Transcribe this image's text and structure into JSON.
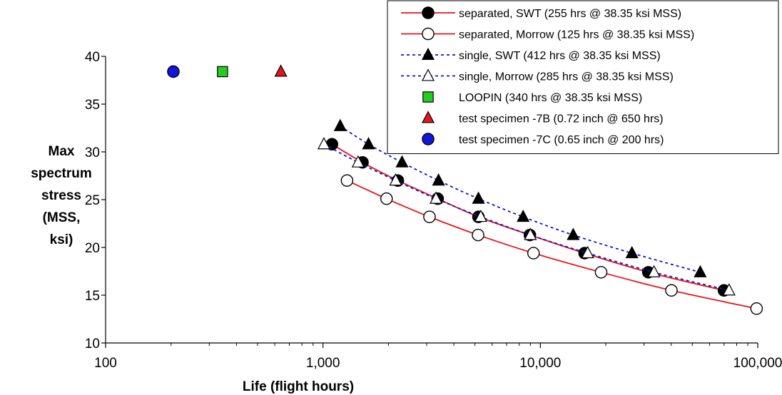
{
  "chart_data": {
    "type": "scatter",
    "xlabel": "Life (flight hours)",
    "ylabel_lines": [
      "Max",
      "spectrum",
      "stress",
      "(MSS,",
      "ksi)"
    ],
    "xscale": "log",
    "xlim": [
      100,
      100000
    ],
    "ylim": [
      10,
      40
    ],
    "xticks": [
      100,
      1000,
      10000,
      100000
    ],
    "xtick_labels": [
      "100",
      "1,000",
      "10,000",
      "100,000"
    ],
    "yticks": [
      10,
      15,
      20,
      25,
      30,
      35,
      40
    ],
    "ytick_labels": [
      "10",
      "15",
      "20",
      "25",
      "30",
      "35",
      "40"
    ],
    "grid": false,
    "legend_position": "top-right",
    "series": [
      {
        "name": "separated, SWT  (255 hrs @ 38.35 ksi MSS)",
        "color": "#e8141c",
        "line": "solid",
        "marker": "circle",
        "marker_fill": "#000000",
        "x": [
          1100,
          1520,
          2210,
          3370,
          5190,
          8950,
          15970,
          31380,
          69900
        ],
        "y": [
          30.8,
          28.9,
          27.0,
          25.1,
          23.2,
          21.3,
          19.4,
          17.4,
          15.5
        ]
      },
      {
        "name": "separated, Morrow  (125 hrs @ 38.35 ksi MSS)",
        "color": "#e8141c",
        "line": "solid",
        "marker": "circle",
        "marker_fill": "#ffffff",
        "x": [
          1290,
          1960,
          3090,
          5170,
          9300,
          19030,
          40080,
          98770
        ],
        "y": [
          27.0,
          25.1,
          23.2,
          21.3,
          19.4,
          17.4,
          15.5,
          13.6
        ]
      },
      {
        "name": "single, SWT  (412 hrs @ 38.35 ksi MSS)",
        "color": "#1414c8",
        "line": "dotted",
        "marker": "triangle",
        "marker_fill": "#000000",
        "x": [
          1200,
          1620,
          2310,
          3400,
          5190,
          8330,
          14160,
          26380,
          54380
        ],
        "y": [
          32.7,
          30.8,
          28.9,
          27.0,
          25.1,
          23.2,
          21.3,
          19.4,
          17.4
        ]
      },
      {
        "name": "single, Morrow  (285 hrs @ 38.35 ksi MSS)",
        "color": "#1414c8",
        "line": "dotted",
        "marker": "triangle",
        "marker_fill": "#ffffff",
        "x": [
          1010,
          1450,
          2160,
          3310,
          5320,
          9000,
          16510,
          33320,
          73800
        ],
        "y": [
          30.8,
          28.9,
          27.0,
          25.1,
          23.2,
          21.3,
          19.4,
          17.4,
          15.5
        ]
      },
      {
        "name": "LOOPIN  (340 hrs @ 38.35 ksi MSS)",
        "color": "#22cc22",
        "line": "none",
        "marker": "square",
        "marker_fill": "#22cc22",
        "x": [
          345
        ],
        "y": [
          38.4
        ]
      },
      {
        "name": "test specimen -7B  (0.72 inch @ 650 hrs)",
        "color": "#e8141c",
        "line": "none",
        "marker": "triangle",
        "marker_fill": "#e8141c",
        "x": [
          640
        ],
        "y": [
          38.4
        ]
      },
      {
        "name": "test specimen -7C  (0.65 inch @ 200 hrs)",
        "color": "#1414dd",
        "line": "none",
        "marker": "circle",
        "marker_fill": "#1414dd",
        "x": [
          205
        ],
        "y": [
          38.4
        ]
      }
    ]
  }
}
